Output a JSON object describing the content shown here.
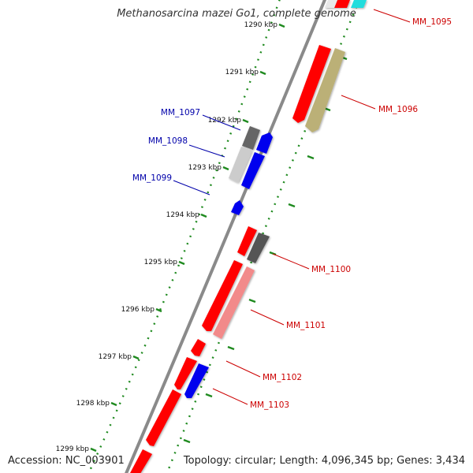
{
  "title": "Methanosarcina mazei Go1, complete genome",
  "accession": "Accession: NC_003901",
  "summary": "Topology: circular; Length: 4,096,345 bp; Genes: 3,434",
  "kbp_labels": [
    "1290 kbp",
    "1291 kbp",
    "1292 kbp",
    "1293 kbp",
    "1294 kbp",
    "1295 kbp",
    "1296 kbp",
    "1297 kbp",
    "1298 kbp",
    "1299 kbp"
  ],
  "gene_labels": [
    {
      "text": "MM_1095",
      "color": "#cc0000"
    },
    {
      "text": "MM_1096",
      "color": "#cc0000"
    },
    {
      "text": "MM_1097",
      "color": "#0000aa"
    },
    {
      "text": "MM_1098",
      "color": "#0000aa"
    },
    {
      "text": "MM_1099",
      "color": "#0000aa"
    },
    {
      "text": "MM_1100",
      "color": "#cc0000"
    },
    {
      "text": "MM_1101",
      "color": "#cc0000"
    },
    {
      "text": "MM_1102",
      "color": "#cc0000"
    },
    {
      "text": "MM_1103",
      "color": "#cc0000"
    }
  ],
  "colors": {
    "red": "#ff0000",
    "blue": "#0000ee",
    "gray": "#666666",
    "lightgray": "#cccccc",
    "olive": "#bbb077",
    "pink": "#f28a8a",
    "cyan": "#22dddd",
    "dots": "#1f8a1f",
    "backbone": "#8a8a8a"
  }
}
